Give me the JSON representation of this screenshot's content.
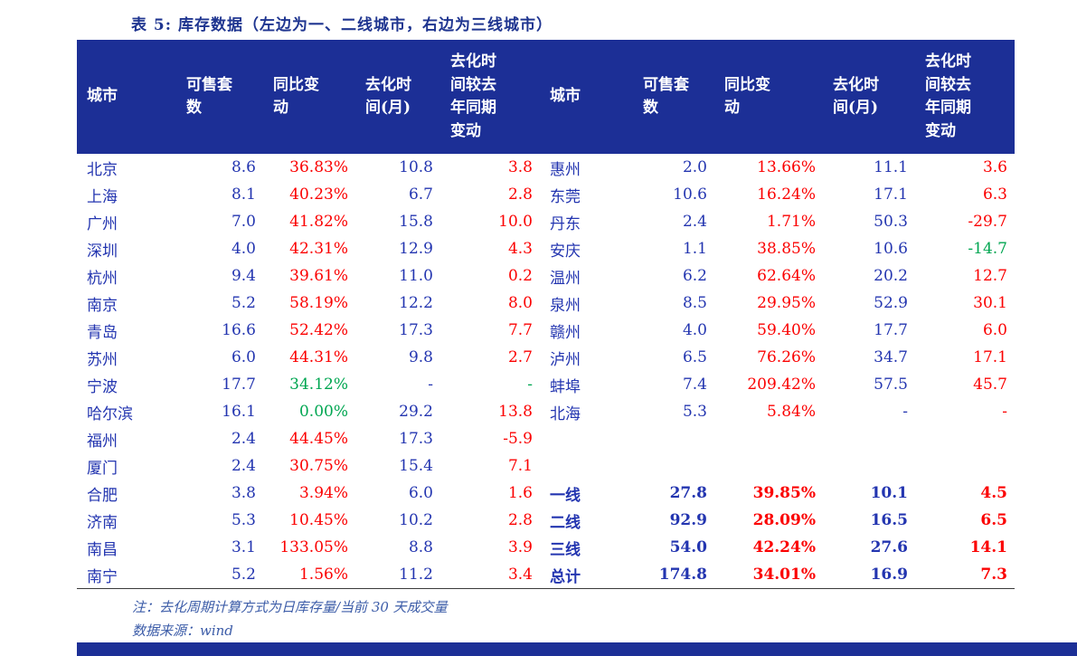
{
  "title": "表 5: 库存数据（左边为一、二线城市，右边为三线城市）",
  "colors": {
    "header_bg": "#1c2f96",
    "data_blue": "#2335b0",
    "up_red": "#fb0000",
    "down_green": "#00a651"
  },
  "table": {
    "headers": [
      [
        "城市"
      ],
      [
        "可售套",
        "数"
      ],
      [
        "同比变",
        "动"
      ],
      [
        "去化时",
        "间(月)"
      ],
      [
        "去化时",
        "间较去",
        "年同期",
        "变动"
      ],
      [
        "城市"
      ],
      [
        "可售套",
        "数"
      ],
      [
        "同比变",
        "动"
      ],
      [
        "去化时",
        "间(月)"
      ],
      [
        "去化时",
        "间较去",
        "年同期",
        "变动"
      ]
    ],
    "rows": [
      {
        "left": {
          "city": "北京",
          "units": "8.6",
          "yoy": "36.83%",
          "yoy_c": "red",
          "months": "10.8",
          "chg": "3.8",
          "chg_c": "red"
        },
        "right": {
          "city": "惠州",
          "units": "2.0",
          "yoy": "13.66%",
          "yoy_c": "red",
          "months": "11.1",
          "chg": "3.6",
          "chg_c": "red"
        }
      },
      {
        "left": {
          "city": "上海",
          "units": "8.1",
          "yoy": "40.23%",
          "yoy_c": "red",
          "months": "6.7",
          "chg": "2.8",
          "chg_c": "red"
        },
        "right": {
          "city": "东莞",
          "units": "10.6",
          "yoy": "16.24%",
          "yoy_c": "red",
          "months": "17.1",
          "chg": "6.3",
          "chg_c": "red"
        }
      },
      {
        "left": {
          "city": "广州",
          "units": "7.0",
          "yoy": "41.82%",
          "yoy_c": "red",
          "months": "15.8",
          "chg": "10.0",
          "chg_c": "red"
        },
        "right": {
          "city": "丹东",
          "units": "2.4",
          "yoy": "1.71%",
          "yoy_c": "red",
          "months": "50.3",
          "chg": "-29.7",
          "chg_c": "red"
        }
      },
      {
        "left": {
          "city": "深圳",
          "units": "4.0",
          "yoy": "42.31%",
          "yoy_c": "red",
          "months": "12.9",
          "chg": "4.3",
          "chg_c": "red"
        },
        "right": {
          "city": "安庆",
          "units": "1.1",
          "yoy": "38.85%",
          "yoy_c": "red",
          "months": "10.6",
          "chg": "-14.7",
          "chg_c": "green"
        }
      },
      {
        "left": {
          "city": "杭州",
          "units": "9.4",
          "yoy": "39.61%",
          "yoy_c": "red",
          "months": "11.0",
          "chg": "0.2",
          "chg_c": "red"
        },
        "right": {
          "city": "温州",
          "units": "6.2",
          "yoy": "62.64%",
          "yoy_c": "red",
          "months": "20.2",
          "chg": "12.7",
          "chg_c": "red"
        }
      },
      {
        "left": {
          "city": "南京",
          "units": "5.2",
          "yoy": "58.19%",
          "yoy_c": "red",
          "months": "12.2",
          "chg": "8.0",
          "chg_c": "red"
        },
        "right": {
          "city": "泉州",
          "units": "8.5",
          "yoy": "29.95%",
          "yoy_c": "red",
          "months": "52.9",
          "chg": "30.1",
          "chg_c": "red"
        }
      },
      {
        "left": {
          "city": "青岛",
          "units": "16.6",
          "yoy": "52.42%",
          "yoy_c": "red",
          "months": "17.3",
          "chg": "7.7",
          "chg_c": "red"
        },
        "right": {
          "city": "赣州",
          "units": "4.0",
          "yoy": "59.40%",
          "yoy_c": "red",
          "months": "17.7",
          "chg": "6.0",
          "chg_c": "red"
        }
      },
      {
        "left": {
          "city": "苏州",
          "units": "6.0",
          "yoy": "44.31%",
          "yoy_c": "red",
          "months": "9.8",
          "chg": "2.7",
          "chg_c": "red"
        },
        "right": {
          "city": "泸州",
          "units": "6.5",
          "yoy": "76.26%",
          "yoy_c": "red",
          "months": "34.7",
          "chg": "17.1",
          "chg_c": "red"
        }
      },
      {
        "left": {
          "city": "宁波",
          "units": "17.7",
          "yoy": "34.12%",
          "yoy_c": "green",
          "months": "-",
          "chg": "-",
          "chg_c": "green"
        },
        "right": {
          "city": "蚌埠",
          "units": "7.4",
          "yoy": "209.42%",
          "yoy_c": "red",
          "months": "57.5",
          "chg": "45.7",
          "chg_c": "red"
        }
      },
      {
        "left": {
          "city": "哈尔滨",
          "units": "16.1",
          "yoy": "0.00%",
          "yoy_c": "green",
          "months": "29.2",
          "chg": "13.8",
          "chg_c": "red"
        },
        "right": {
          "city": "北海",
          "units": "5.3",
          "yoy": "5.84%",
          "yoy_c": "red",
          "months": "-",
          "chg": "-",
          "chg_c": "red"
        }
      },
      {
        "left": {
          "city": "福州",
          "units": "2.4",
          "yoy": "44.45%",
          "yoy_c": "red",
          "months": "17.3",
          "chg": "-5.9",
          "chg_c": "red"
        },
        "right": null
      },
      {
        "left": {
          "city": "厦门",
          "units": "2.4",
          "yoy": "30.75%",
          "yoy_c": "red",
          "months": "15.4",
          "chg": "7.1",
          "chg_c": "red"
        },
        "right": null
      },
      {
        "left": {
          "city": "合肥",
          "units": "3.8",
          "yoy": "3.94%",
          "yoy_c": "red",
          "months": "6.0",
          "chg": "1.6",
          "chg_c": "red"
        },
        "right": {
          "city": "一线",
          "units": "27.8",
          "yoy": "39.85%",
          "yoy_c": "red",
          "months": "10.1",
          "chg": "4.5",
          "chg_c": "red",
          "bold": true
        }
      },
      {
        "left": {
          "city": "济南",
          "units": "5.3",
          "yoy": "10.45%",
          "yoy_c": "red",
          "months": "10.2",
          "chg": "2.8",
          "chg_c": "red"
        },
        "right": {
          "city": "二线",
          "units": "92.9",
          "yoy": "28.09%",
          "yoy_c": "red",
          "months": "16.5",
          "chg": "6.5",
          "chg_c": "red",
          "bold": true
        }
      },
      {
        "left": {
          "city": "南昌",
          "units": "3.1",
          "yoy": "133.05%",
          "yoy_c": "red",
          "months": "8.8",
          "chg": "3.9",
          "chg_c": "red"
        },
        "right": {
          "city": "三线",
          "units": "54.0",
          "yoy": "42.24%",
          "yoy_c": "red",
          "months": "27.6",
          "chg": "14.1",
          "chg_c": "red",
          "bold": true
        }
      },
      {
        "left": {
          "city": "南宁",
          "units": "5.2",
          "yoy": "1.56%",
          "yoy_c": "red",
          "months": "11.2",
          "chg": "3.4",
          "chg_c": "red"
        },
        "right": {
          "city": "总计",
          "units": "174.8",
          "yoy": "34.01%",
          "yoy_c": "red",
          "months": "16.9",
          "chg": "7.3",
          "chg_c": "red",
          "bold": true
        }
      }
    ]
  },
  "notes": {
    "calc": "注：去化周期计算方式为日库存量/当前 30 天成交量",
    "source": "数据来源：wind"
  }
}
